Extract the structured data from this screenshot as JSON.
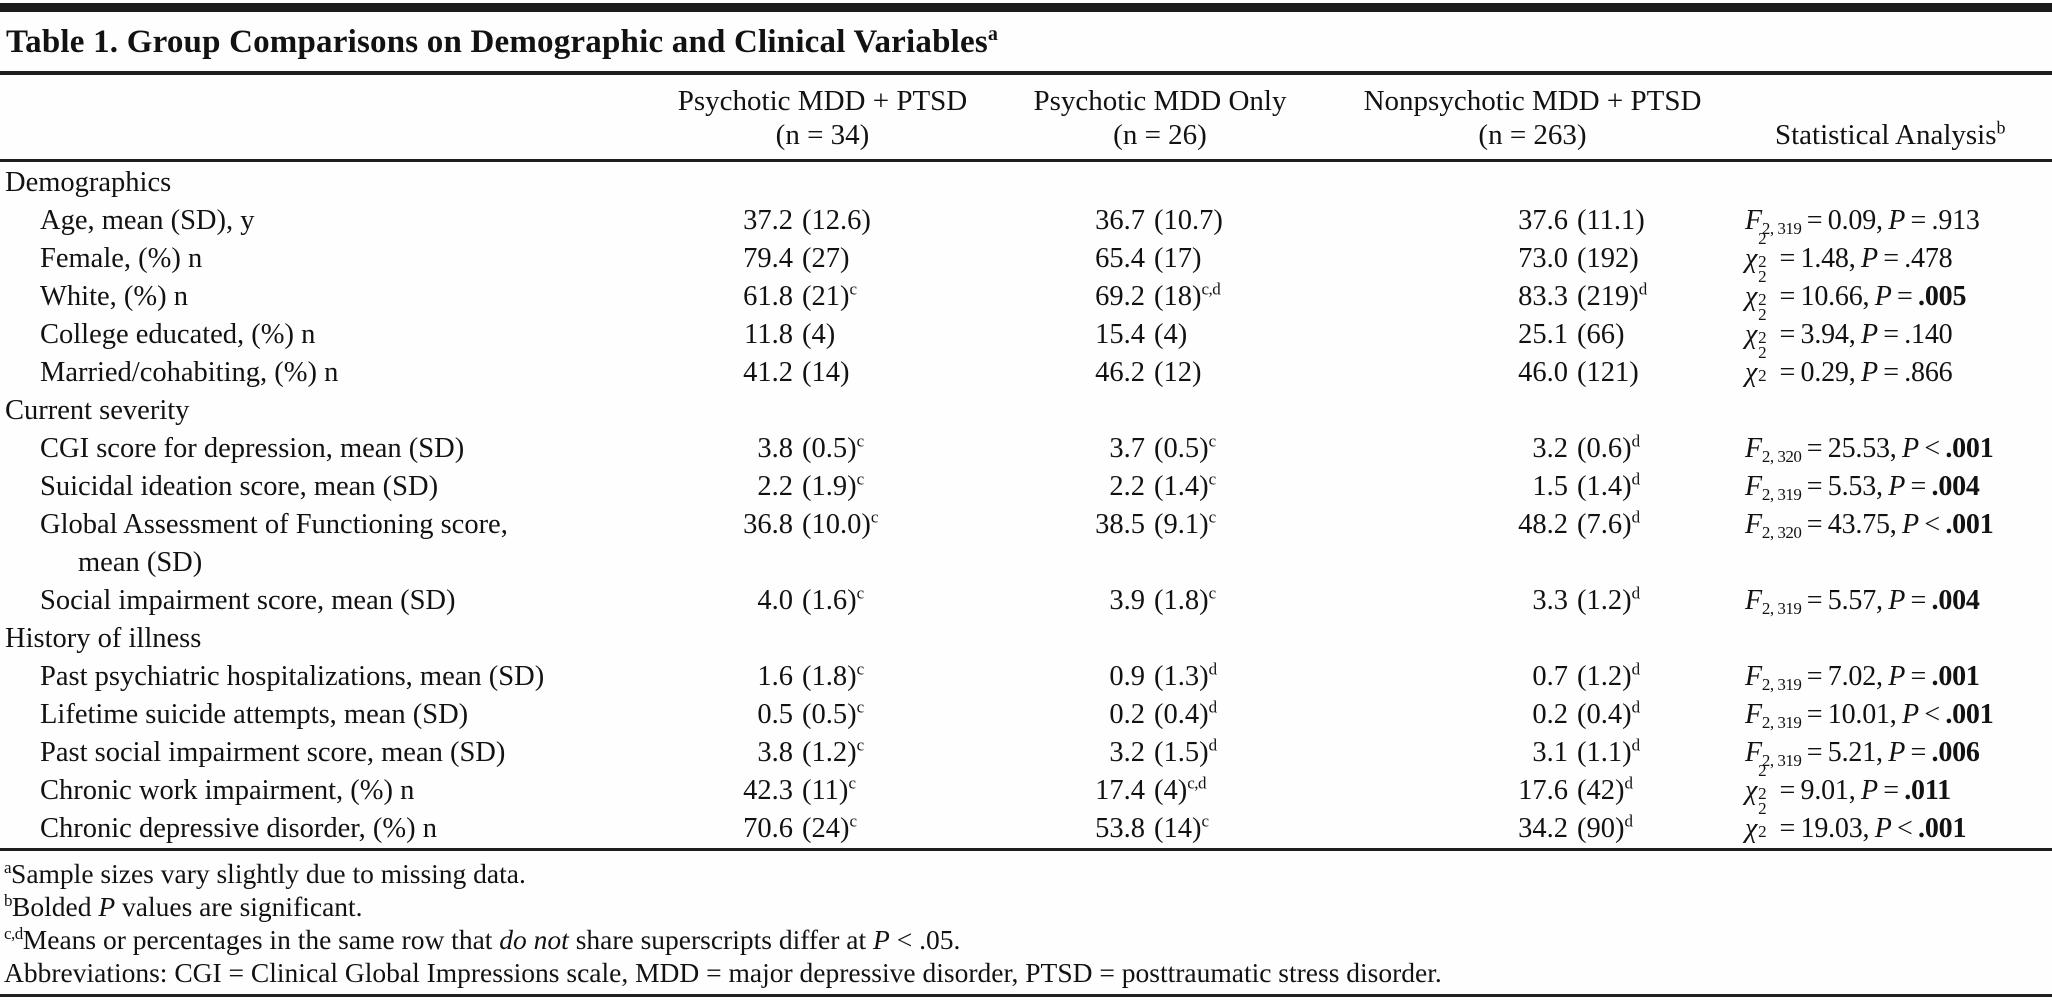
{
  "page": {
    "background": "#fefefe",
    "text_color": "#121212",
    "rule_color": "#1f1f1f"
  },
  "table": {
    "title": "Table 1. Group Comparisons on Demographic and Clinical Variables",
    "title_sup": "a",
    "columns": [
      {
        "line1": "Psychotic MDD + PTSD",
        "line2": "(n = 34)",
        "sup": ""
      },
      {
        "line1": "Psychotic MDD Only",
        "line2": "(n = 26)",
        "sup": ""
      },
      {
        "line1": "Nonpsychotic MDD + PTSD",
        "line2": "(n = 263)",
        "sup": ""
      },
      {
        "line1": "",
        "line2": "Statistical Analysis",
        "sup": "b"
      }
    ],
    "sections": [
      {
        "header": "Demographics",
        "rows": [
          {
            "label": "Age, mean (SD), y",
            "label2": "",
            "cells": [
              {
                "m": "37.2",
                "s": "(12.6)",
                "sup": ""
              },
              {
                "m": "36.7",
                "s": "(10.7)",
                "sup": ""
              },
              {
                "m": "37.6",
                "s": "(11.1)",
                "sup": ""
              }
            ],
            "stat": {
              "sym": "F",
              "df": "2, 319",
              "val": "0.09",
              "p_op": "=",
              "p": ".913",
              "p_bold": false
            }
          },
          {
            "label": "Female, (%) n",
            "label2": "",
            "cells": [
              {
                "m": "79.4",
                "s": "(27)",
                "sup": ""
              },
              {
                "m": "65.4",
                "s": "(17)",
                "sup": ""
              },
              {
                "m": "73.0",
                "s": "(192)",
                "sup": ""
              }
            ],
            "stat": {
              "sym": "chi",
              "df": "2",
              "val": "1.48",
              "p_op": "=",
              "p": ".478",
              "p_bold": false
            }
          },
          {
            "label": "White, (%) n",
            "label2": "",
            "cells": [
              {
                "m": "61.8",
                "s": "(21)",
                "sup": "c"
              },
              {
                "m": "69.2",
                "s": "(18)",
                "sup": "c,d"
              },
              {
                "m": "83.3",
                "s": "(219)",
                "sup": "d"
              }
            ],
            "stat": {
              "sym": "chi",
              "df": "2",
              "val": "10.66",
              "p_op": "=",
              "p": ".005",
              "p_bold": true
            }
          },
          {
            "label": "College educated, (%) n",
            "label2": "",
            "cells": [
              {
                "m": "11.8",
                "s": "(4)",
                "sup": ""
              },
              {
                "m": "15.4",
                "s": "(4)",
                "sup": ""
              },
              {
                "m": "25.1",
                "s": "(66)",
                "sup": ""
              }
            ],
            "stat": {
              "sym": "chi",
              "df": "2",
              "val": "3.94",
              "p_op": "=",
              "p": ".140",
              "p_bold": false
            }
          },
          {
            "label": "Married/cohabiting, (%) n",
            "label2": "",
            "cells": [
              {
                "m": "41.2",
                "s": "(14)",
                "sup": ""
              },
              {
                "m": "46.2",
                "s": "(12)",
                "sup": ""
              },
              {
                "m": "46.0",
                "s": "(121)",
                "sup": ""
              }
            ],
            "stat": {
              "sym": "chi",
              "df": "2",
              "val": "0.29",
              "p_op": "=",
              "p": ".866",
              "p_bold": false
            }
          }
        ]
      },
      {
        "header": "Current severity",
        "rows": [
          {
            "label": "CGI score for depression, mean (SD)",
            "label2": "",
            "cells": [
              {
                "m": "3.8",
                "s": "(0.5)",
                "sup": "c"
              },
              {
                "m": "3.7",
                "s": "(0.5)",
                "sup": "c"
              },
              {
                "m": "3.2",
                "s": "(0.6)",
                "sup": "d"
              }
            ],
            "stat": {
              "sym": "F",
              "df": "2, 320",
              "val": "25.53",
              "p_op": "<",
              "p": ".001",
              "p_bold": true
            }
          },
          {
            "label": "Suicidal ideation score, mean (SD)",
            "label2": "",
            "cells": [
              {
                "m": "2.2",
                "s": "(1.9)",
                "sup": "c"
              },
              {
                "m": "2.2",
                "s": "(1.4)",
                "sup": "c"
              },
              {
                "m": "1.5",
                "s": "(1.4)",
                "sup": "d"
              }
            ],
            "stat": {
              "sym": "F",
              "df": "2, 319",
              "val": "5.53",
              "p_op": "=",
              "p": ".004",
              "p_bold": true
            }
          },
          {
            "label": "Global Assessment of Functioning score,",
            "label2": "mean (SD)",
            "cells": [
              {
                "m": "36.8",
                "s": "(10.0)",
                "sup": "c"
              },
              {
                "m": "38.5",
                "s": "(9.1)",
                "sup": "c"
              },
              {
                "m": "48.2",
                "s": "(7.6)",
                "sup": "d"
              }
            ],
            "stat": {
              "sym": "F",
              "df": "2, 320",
              "val": "43.75",
              "p_op": "<",
              "p": ".001",
              "p_bold": true
            }
          },
          {
            "label": "Social impairment score, mean (SD)",
            "label2": "",
            "cells": [
              {
                "m": "4.0",
                "s": "(1.6)",
                "sup": "c"
              },
              {
                "m": "3.9",
                "s": "(1.8)",
                "sup": "c"
              },
              {
                "m": "3.3",
                "s": "(1.2)",
                "sup": "d"
              }
            ],
            "stat": {
              "sym": "F",
              "df": "2, 319",
              "val": "5.57",
              "p_op": "=",
              "p": ".004",
              "p_bold": true
            }
          }
        ]
      },
      {
        "header": "History of illness",
        "rows": [
          {
            "label": "Past psychiatric hospitalizations, mean (SD)",
            "label2": "",
            "cells": [
              {
                "m": "1.6",
                "s": "(1.8)",
                "sup": "c"
              },
              {
                "m": "0.9",
                "s": "(1.3)",
                "sup": "d"
              },
              {
                "m": "0.7",
                "s": "(1.2)",
                "sup": "d"
              }
            ],
            "stat": {
              "sym": "F",
              "df": "2, 319",
              "val": "7.02",
              "p_op": "=",
              "p": ".001",
              "p_bold": true
            }
          },
          {
            "label": "Lifetime suicide attempts, mean (SD)",
            "label2": "",
            "cells": [
              {
                "m": "0.5",
                "s": "(0.5)",
                "sup": "c"
              },
              {
                "m": "0.2",
                "s": "(0.4)",
                "sup": "d"
              },
              {
                "m": "0.2",
                "s": "(0.4)",
                "sup": "d"
              }
            ],
            "stat": {
              "sym": "F",
              "df": "2, 319",
              "val": "10.01",
              "p_op": "<",
              "p": ".001",
              "p_bold": true
            }
          },
          {
            "label": "Past social impairment score, mean (SD)",
            "label2": "",
            "cells": [
              {
                "m": "3.8",
                "s": "(1.2)",
                "sup": "c"
              },
              {
                "m": "3.2",
                "s": "(1.5)",
                "sup": "d"
              },
              {
                "m": "3.1",
                "s": "(1.1)",
                "sup": "d"
              }
            ],
            "stat": {
              "sym": "F",
              "df": "2, 319",
              "val": "5.21",
              "p_op": "=",
              "p": ".006",
              "p_bold": true
            }
          },
          {
            "label": "Chronic work impairment, (%) n",
            "label2": "",
            "cells": [
              {
                "m": "42.3",
                "s": "(11)",
                "sup": "c"
              },
              {
                "m": "17.4",
                "s": "(4)",
                "sup": "c,d"
              },
              {
                "m": "17.6",
                "s": "(42)",
                "sup": "d"
              }
            ],
            "stat": {
              "sym": "chi",
              "df": "2",
              "val": "9.01",
              "p_op": "=",
              "p": ".011",
              "p_bold": true
            }
          },
          {
            "label": "Chronic depressive disorder, (%) n",
            "label2": "",
            "cells": [
              {
                "m": "70.6",
                "s": "(24)",
                "sup": "c"
              },
              {
                "m": "53.8",
                "s": "(14)",
                "sup": "c"
              },
              {
                "m": "34.2",
                "s": "(90)",
                "sup": "d"
              }
            ],
            "stat": {
              "sym": "chi",
              "df": "2",
              "val": "19.03",
              "p_op": "<",
              "p": ".001",
              "p_bold": true
            }
          }
        ]
      }
    ],
    "footnotes": [
      {
        "sup": "a",
        "parts": [
          {
            "t": "Sample sizes vary slightly due to missing data.",
            "i": false
          }
        ]
      },
      {
        "sup": "b",
        "parts": [
          {
            "t": "Bolded ",
            "i": false
          },
          {
            "t": "P",
            "i": true
          },
          {
            "t": " values are significant.",
            "i": false
          }
        ]
      },
      {
        "sup": "c,d",
        "parts": [
          {
            "t": "Means or percentages in the same row that ",
            "i": false
          },
          {
            "t": "do not",
            "i": true
          },
          {
            "t": " share superscripts differ at ",
            "i": false
          },
          {
            "t": "P",
            "i": true
          },
          {
            "t": " < .05.",
            "i": false
          }
        ]
      },
      {
        "sup": "",
        "parts": [
          {
            "t": "Abbreviations: CGI = Clinical Global Impressions scale, MDD = major depressive disorder, PTSD = posttraumatic stress disorder.",
            "i": false
          }
        ]
      }
    ]
  }
}
